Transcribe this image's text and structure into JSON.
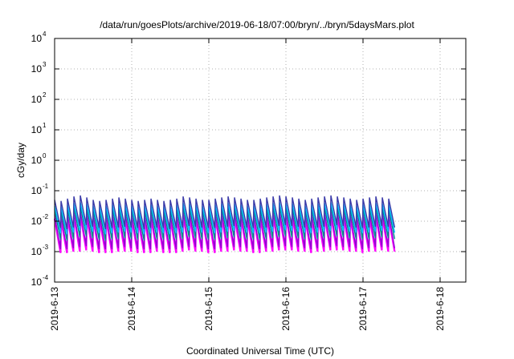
{
  "chart_data": {
    "type": "line",
    "title": "/data/run/goesPlots/archive/2019-06-18/07:00/bryn/../bryn/5daysMars.plot",
    "xlabel": "Coordinated Universal Time (UTC)",
    "ylabel": "cGy/day",
    "x_range": [
      "2019-06-13",
      "2019-06-18 08:00"
    ],
    "ylim": [
      0.0001,
      10000
    ],
    "yscale": "log",
    "grid": true,
    "legend": "none",
    "x_tick_labels": [
      "2019-6-13",
      "2019-6-14",
      "2019-6-15",
      "2019-6-16",
      "2019-6-17",
      "2019-6-18"
    ],
    "y_ticks": [
      {
        "base": "10",
        "exp": "-4"
      },
      {
        "base": "10",
        "exp": "-3"
      },
      {
        "base": "10",
        "exp": "-2"
      },
      {
        "base": "10",
        "exp": "-1"
      },
      {
        "base": "10",
        "exp": "0"
      },
      {
        "base": "10",
        "exp": "1"
      },
      {
        "base": "10",
        "exp": "2"
      },
      {
        "base": "10",
        "exp": "3"
      },
      {
        "base": "10",
        "exp": "4"
      }
    ],
    "series": [
      {
        "color": "#ff00ff",
        "peaks": [
          0.012,
          0.011,
          0.013,
          0.015,
          0.016,
          0.014,
          0.012,
          0.011,
          0.012,
          0.013,
          0.014,
          0.013,
          0.012,
          0.011,
          0.012,
          0.013,
          0.012,
          0.011,
          0.012,
          0.013,
          0.015,
          0.014,
          0.013,
          0.012,
          0.012,
          0.013,
          0.014,
          0.015,
          0.014,
          0.013,
          0.012,
          0.012,
          0.013,
          0.014,
          0.015,
          0.016,
          0.015,
          0.014,
          0.013,
          0.012,
          0.013,
          0.014,
          0.015,
          0.016,
          0.015,
          0.014,
          0.013,
          0.012,
          0.013,
          0.014,
          0.015,
          0.014,
          0.013
        ],
        "troughs": [
          0.0009,
          0.0009,
          0.001,
          0.001,
          0.0011,
          0.001,
          0.0009,
          0.0009,
          0.0009,
          0.001,
          0.001,
          0.001,
          0.0009,
          0.0009,
          0.0009,
          0.001,
          0.0009,
          0.0009,
          0.0009,
          0.001,
          0.0011,
          0.001,
          0.001,
          0.0009,
          0.0009,
          0.001,
          0.001,
          0.0011,
          0.001,
          0.001,
          0.0009,
          0.0009,
          0.001,
          0.001,
          0.0011,
          0.0011,
          0.0011,
          0.001,
          0.001,
          0.0009,
          0.001,
          0.001,
          0.0011,
          0.0011,
          0.0011,
          0.001,
          0.001,
          0.0009,
          0.001,
          0.001,
          0.0011,
          0.001,
          0.001
        ]
      },
      {
        "color": "#9400d3",
        "peaks": [
          0.016,
          0.015,
          0.017,
          0.02,
          0.021,
          0.019,
          0.016,
          0.015,
          0.016,
          0.017,
          0.019,
          0.017,
          0.016,
          0.015,
          0.016,
          0.017,
          0.016,
          0.015,
          0.016,
          0.017,
          0.02,
          0.019,
          0.017,
          0.016,
          0.016,
          0.017,
          0.019,
          0.02,
          0.019,
          0.017,
          0.016,
          0.016,
          0.017,
          0.019,
          0.02,
          0.021,
          0.02,
          0.019,
          0.017,
          0.016,
          0.017,
          0.019,
          0.02,
          0.021,
          0.02,
          0.019,
          0.017,
          0.016,
          0.017,
          0.019,
          0.02,
          0.019,
          0.017
        ],
        "troughs": [
          0.0012,
          0.0012,
          0.0013,
          0.0014,
          0.0015,
          0.0014,
          0.0012,
          0.0012,
          0.0012,
          0.0013,
          0.0014,
          0.0013,
          0.0012,
          0.0012,
          0.0012,
          0.0013,
          0.0012,
          0.0012,
          0.0012,
          0.0013,
          0.0014,
          0.0014,
          0.0013,
          0.0012,
          0.0012,
          0.0013,
          0.0014,
          0.0014,
          0.0014,
          0.0013,
          0.0012,
          0.0012,
          0.0013,
          0.0014,
          0.0014,
          0.0015,
          0.0014,
          0.0014,
          0.0013,
          0.0012,
          0.0013,
          0.0014,
          0.0014,
          0.0015,
          0.0014,
          0.0014,
          0.0013,
          0.0012,
          0.0013,
          0.0014,
          0.0014,
          0.0014,
          0.0013
        ]
      },
      {
        "color": "#008b8b",
        "peaks": [
          0.024,
          0.022,
          0.026,
          0.03,
          0.032,
          0.028,
          0.024,
          0.022,
          0.024,
          0.026,
          0.028,
          0.026,
          0.024,
          0.022,
          0.024,
          0.026,
          0.024,
          0.022,
          0.024,
          0.026,
          0.03,
          0.028,
          0.026,
          0.024,
          0.024,
          0.026,
          0.028,
          0.03,
          0.028,
          0.026,
          0.024,
          0.024,
          0.026,
          0.028,
          0.03,
          0.032,
          0.03,
          0.028,
          0.026,
          0.024,
          0.026,
          0.028,
          0.03,
          0.032,
          0.03,
          0.028,
          0.026,
          0.024,
          0.026,
          0.028,
          0.03,
          0.028,
          0.026
        ],
        "troughs": [
          0.0025,
          0.0023,
          0.0026,
          0.003,
          0.0032,
          0.0028,
          0.0025,
          0.0023,
          0.0025,
          0.0026,
          0.0028,
          0.0026,
          0.0025,
          0.0023,
          0.0025,
          0.0026,
          0.0025,
          0.0023,
          0.0025,
          0.0026,
          0.003,
          0.0028,
          0.0026,
          0.0025,
          0.0025,
          0.0026,
          0.0028,
          0.003,
          0.0028,
          0.0026,
          0.0025,
          0.0025,
          0.0026,
          0.0028,
          0.003,
          0.0032,
          0.003,
          0.0028,
          0.0026,
          0.0025,
          0.0026,
          0.0028,
          0.003,
          0.0032,
          0.003,
          0.0028,
          0.0026,
          0.0025,
          0.0026,
          0.0028,
          0.003,
          0.0028,
          0.0026
        ]
      },
      {
        "color": "#00bfff",
        "peaks": [
          0.032,
          0.03,
          0.035,
          0.04,
          0.042,
          0.038,
          0.032,
          0.03,
          0.032,
          0.035,
          0.038,
          0.035,
          0.032,
          0.03,
          0.032,
          0.035,
          0.032,
          0.03,
          0.032,
          0.035,
          0.04,
          0.038,
          0.035,
          0.032,
          0.032,
          0.035,
          0.038,
          0.04,
          0.038,
          0.035,
          0.032,
          0.032,
          0.035,
          0.038,
          0.04,
          0.042,
          0.04,
          0.038,
          0.035,
          0.032,
          0.035,
          0.038,
          0.04,
          0.042,
          0.04,
          0.038,
          0.035,
          0.032,
          0.035,
          0.038,
          0.04,
          0.038,
          0.035
        ],
        "troughs": [
          0.004,
          0.0037,
          0.0042,
          0.0048,
          0.005,
          0.0045,
          0.004,
          0.0037,
          0.004,
          0.0042,
          0.0045,
          0.0042,
          0.004,
          0.0037,
          0.004,
          0.0042,
          0.004,
          0.0037,
          0.004,
          0.0042,
          0.0048,
          0.0045,
          0.0042,
          0.004,
          0.004,
          0.0042,
          0.0045,
          0.0048,
          0.0045,
          0.0042,
          0.004,
          0.004,
          0.0042,
          0.0045,
          0.0048,
          0.005,
          0.0048,
          0.0045,
          0.0042,
          0.004,
          0.0042,
          0.0045,
          0.0048,
          0.005,
          0.0048,
          0.0045,
          0.0042,
          0.004,
          0.0042,
          0.0045,
          0.0048,
          0.0045,
          0.0042
        ]
      },
      {
        "color": "#3a3aa8",
        "peaks": [
          0.05,
          0.046,
          0.055,
          0.065,
          0.07,
          0.06,
          0.05,
          0.046,
          0.05,
          0.055,
          0.06,
          0.055,
          0.05,
          0.046,
          0.05,
          0.055,
          0.05,
          0.046,
          0.05,
          0.055,
          0.065,
          0.06,
          0.055,
          0.05,
          0.05,
          0.055,
          0.06,
          0.065,
          0.06,
          0.055,
          0.05,
          0.05,
          0.055,
          0.06,
          0.065,
          0.07,
          0.065,
          0.06,
          0.055,
          0.05,
          0.055,
          0.06,
          0.065,
          0.07,
          0.065,
          0.06,
          0.055,
          0.05,
          0.055,
          0.06,
          0.065,
          0.06,
          0.055
        ],
        "troughs": [
          0.006,
          0.0055,
          0.0062,
          0.007,
          0.0075,
          0.0066,
          0.006,
          0.0055,
          0.006,
          0.0062,
          0.0066,
          0.0062,
          0.006,
          0.0055,
          0.006,
          0.0062,
          0.006,
          0.0055,
          0.006,
          0.0062,
          0.007,
          0.0066,
          0.0062,
          0.006,
          0.006,
          0.0062,
          0.0066,
          0.007,
          0.0066,
          0.0062,
          0.006,
          0.006,
          0.0062,
          0.0066,
          0.007,
          0.0075,
          0.007,
          0.0066,
          0.0062,
          0.006,
          0.0062,
          0.0066,
          0.007,
          0.0075,
          0.007,
          0.0066,
          0.0062,
          0.006,
          0.0062,
          0.0066,
          0.007,
          0.0066,
          0.0062
        ]
      }
    ]
  }
}
